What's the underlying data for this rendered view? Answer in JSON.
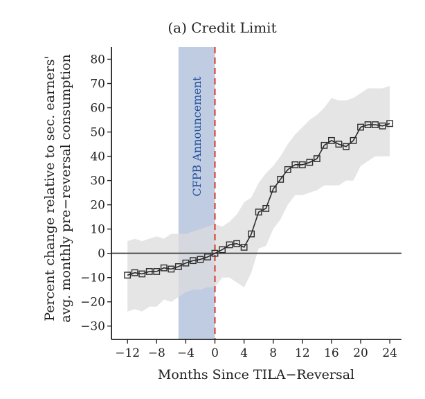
{
  "chart_data": {
    "type": "line",
    "title": "(a) Credit Limit",
    "xlabel": "Months Since TILA−Reversal",
    "ylabel_line1": "Percent change relative to sec. earners'",
    "ylabel_line2": "avg. monthly pre−reversal consumption",
    "xlim": [
      -14.2,
      25.6
    ],
    "ylim": [
      -35.5,
      85
    ],
    "xticks": [
      -12,
      -8,
      -4,
      0,
      4,
      8,
      12,
      16,
      20,
      24
    ],
    "xtick_labels": [
      "−12",
      "−8",
      "−4",
      "0",
      "4",
      "8",
      "12",
      "16",
      "20",
      "24"
    ],
    "yticks": [
      -30,
      -20,
      -10,
      0,
      10,
      20,
      30,
      40,
      50,
      60,
      70,
      80
    ],
    "ytick_labels": [
      "−30",
      "−20",
      "−10",
      "0",
      "10",
      "20",
      "30",
      "40",
      "50",
      "60",
      "70",
      "80"
    ],
    "shaded_region": {
      "label": "CFPB Announcement",
      "x_start": -5,
      "x_end": 0,
      "color": "#b8c6de"
    },
    "event_line": {
      "x": 0,
      "color": "#d9453d",
      "style": "dashed"
    },
    "zero_line": {
      "y": 0,
      "color": "#555555"
    },
    "grid": false,
    "series": [
      {
        "marker": "square",
        "color": "#2b2b2b",
        "ci_color": "#dcdcdc",
        "x": [
          -12,
          -11,
          -10,
          -9,
          -8,
          -7,
          -6,
          -5,
          -4,
          -3,
          -2,
          -1,
          0,
          1,
          2,
          3,
          4,
          5,
          6,
          7,
          8,
          9,
          10,
          11,
          12,
          13,
          14,
          15,
          16,
          17,
          18,
          19,
          20,
          21,
          22,
          23,
          24
        ],
        "y": [
          -9,
          -8,
          -8.5,
          -7.5,
          -7.5,
          -6,
          -6.5,
          -5.5,
          -4,
          -3,
          -2.5,
          -1.5,
          0,
          1.5,
          3.5,
          4,
          2.5,
          8,
          17,
          18.5,
          26.5,
          30.5,
          34.5,
          36.5,
          36.5,
          37.5,
          39,
          44.5,
          46.5,
          45,
          44,
          46.5,
          52,
          53,
          53,
          52.5,
          53.5
        ],
        "ci_upper": [
          5,
          6,
          5,
          6,
          7,
          6,
          8,
          8,
          8,
          9,
          10,
          11,
          12,
          11,
          13,
          16,
          21,
          23,
          29,
          33,
          36,
          40,
          45,
          49,
          52,
          55,
          57,
          60,
          64,
          63,
          63,
          64,
          66,
          68,
          68,
          68,
          69
        ],
        "ci_lower": [
          -24,
          -23,
          -24,
          -22,
          -22,
          -19,
          -20,
          -18,
          -16,
          -15,
          -15,
          -14,
          -14,
          -10,
          -10,
          -12,
          -14,
          -8,
          2,
          3,
          10,
          14,
          20,
          24,
          24,
          25,
          26,
          28,
          28,
          28,
          30,
          30,
          36,
          38,
          40,
          40,
          40
        ]
      }
    ]
  }
}
